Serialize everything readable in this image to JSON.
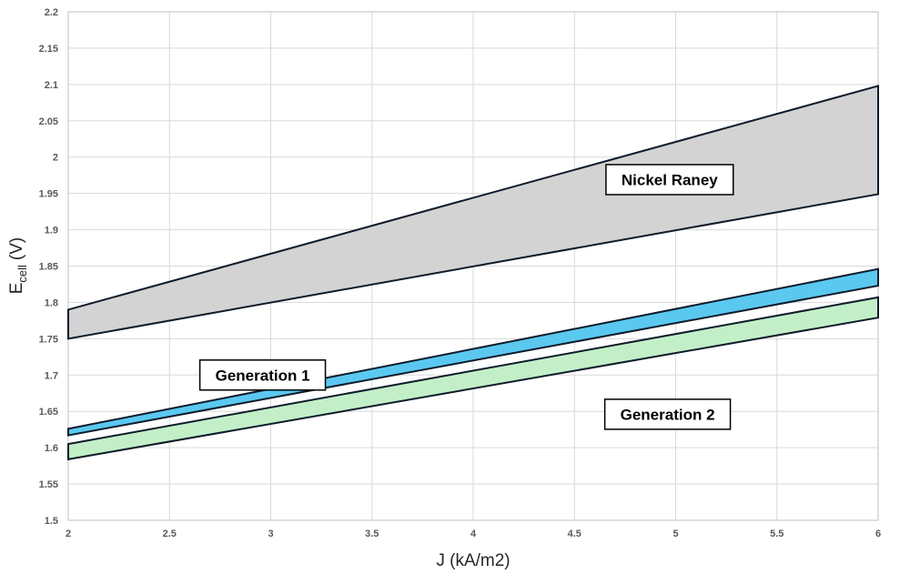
{
  "chart_data": {
    "type": "area",
    "title": "",
    "xlabel": "J (kA/m2)",
    "ylabel_main": "E",
    "ylabel_sub": "cell",
    "ylabel_unit": "(V)",
    "xlim": [
      2,
      6
    ],
    "ylim": [
      1.5,
      2.2
    ],
    "x_ticks": [
      "2",
      "2.5",
      "3",
      "3.5",
      "4",
      "4.5",
      "5",
      "5.5",
      "6"
    ],
    "y_ticks": [
      "1.5",
      "1.55",
      "1.6",
      "1.65",
      "1.7",
      "1.75",
      "1.8",
      "1.85",
      "1.9",
      "1.95",
      "2",
      "2.05",
      "2.1",
      "2.15",
      "2.2"
    ],
    "grid": true,
    "series": [
      {
        "name": "Nickel Raney",
        "x": [
          2,
          6
        ],
        "upper": [
          1.79,
          2.098
        ],
        "lower": [
          1.75,
          1.949
        ],
        "color": "#d3d3d3"
      },
      {
        "name": "Generation 1",
        "x": [
          2,
          6
        ],
        "upper": [
          1.626,
          1.846
        ],
        "lower": [
          1.617,
          1.823
        ],
        "color": "#5bc8f0"
      },
      {
        "name": "Generation 2",
        "x": [
          2,
          6
        ],
        "upper": [
          1.605,
          1.807
        ],
        "lower": [
          1.584,
          1.779
        ],
        "color": "#c3efc8"
      }
    ],
    "annotations": [
      {
        "text": "Nickel Raney",
        "x": 4.97,
        "y": 1.969
      },
      {
        "text": "Generation 1",
        "x": 2.96,
        "y": 1.7
      },
      {
        "text": "Generation 2",
        "x": 4.96,
        "y": 1.646
      }
    ]
  }
}
